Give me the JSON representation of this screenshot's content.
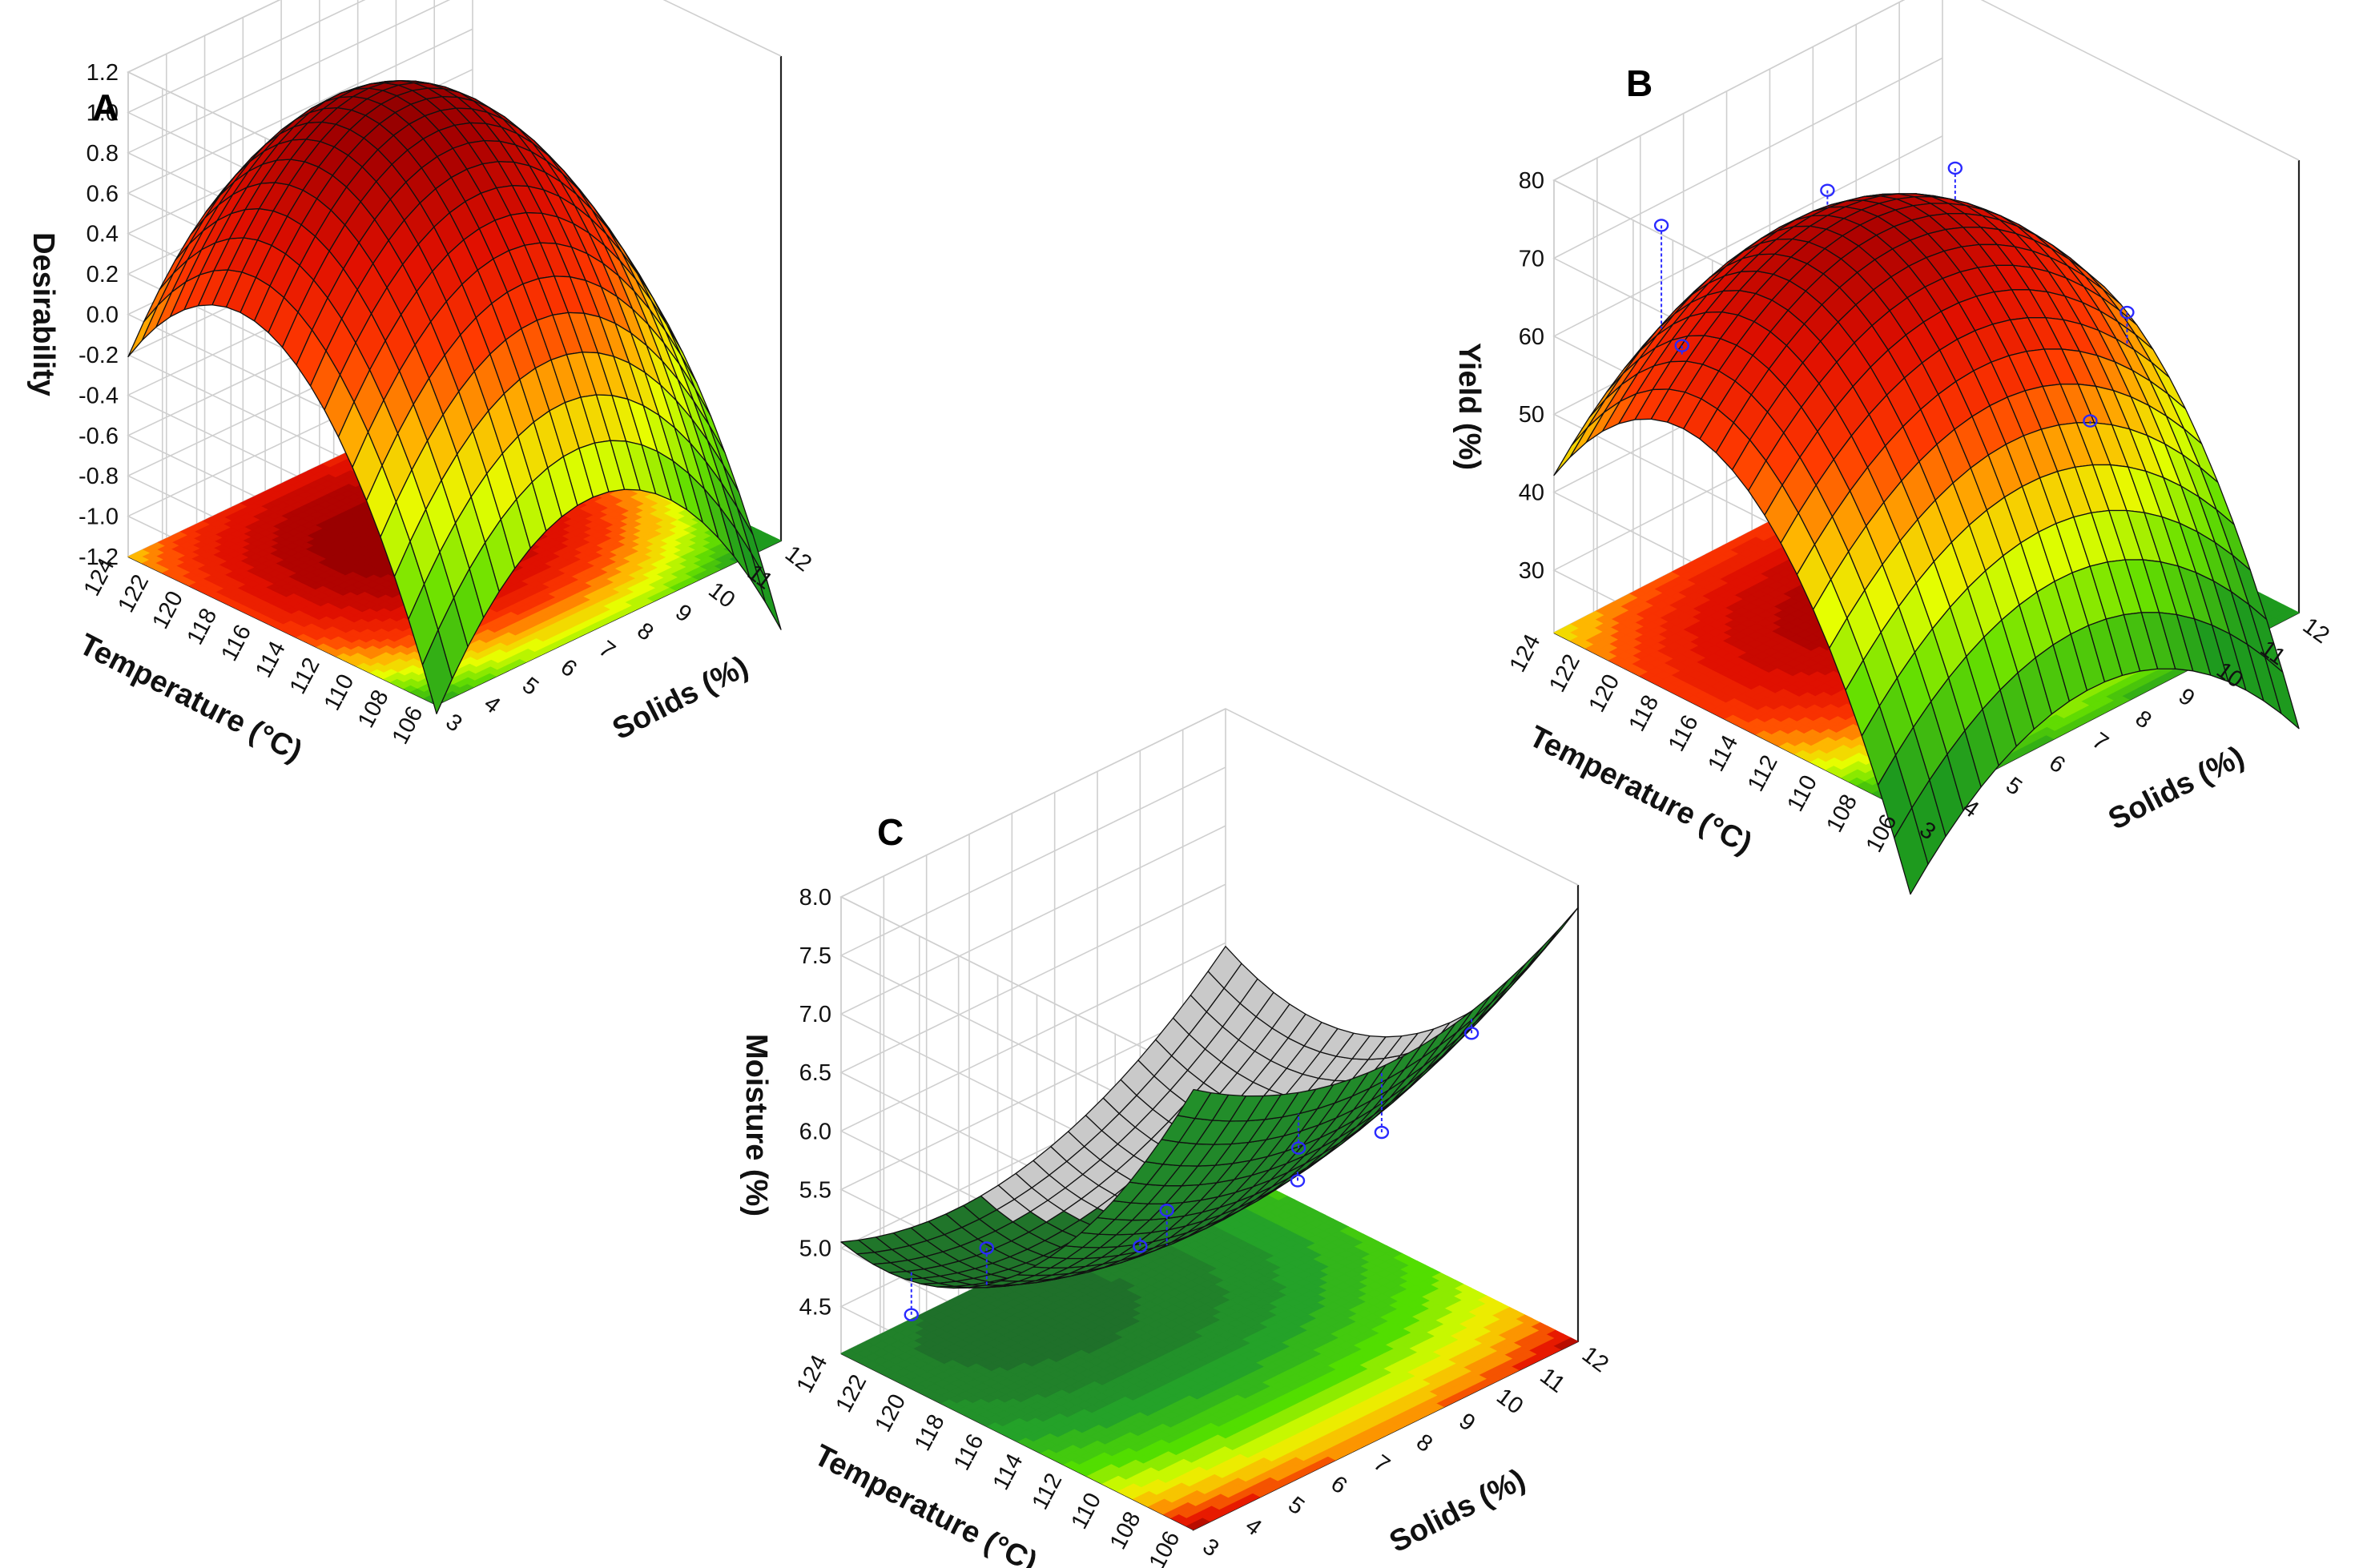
{
  "chart_data": [
    {
      "panel": "A",
      "type": "surface",
      "colormap": "green-yellow-red",
      "xlabel": "Solids (%)",
      "ylabel": "Temperature (°C)",
      "zlabel": "Desirability",
      "xlim": [
        3,
        12
      ],
      "ylim": [
        106,
        124
      ],
      "zlim": [
        -1.2,
        1.2
      ],
      "xticks": [
        "3",
        "4",
        "5",
        "6",
        "7",
        "8",
        "9",
        "10",
        "11",
        "12"
      ],
      "yticks": [
        "106",
        "108",
        "110",
        "112",
        "114",
        "116",
        "118",
        "120",
        "122",
        "124"
      ],
      "zticks": [
        "-1.2",
        "-1.0",
        "-0.8",
        "-0.6",
        "-0.4",
        "-0.2",
        "0.0",
        "0.2",
        "0.4",
        "0.6",
        "0.8",
        "1.0",
        "1.2"
      ],
      "surface": {
        "peak": 0.98,
        "x_opt": 7.0,
        "y_opt": 117.5,
        "ax": 0.044,
        "ay": 0.0115,
        "axy": 0.0
      },
      "points": []
    },
    {
      "panel": "B",
      "type": "surface",
      "colormap": "green-yellow-red",
      "xlabel": "Solids (%)",
      "ylabel": "Temperature (°C)",
      "zlabel": "Yield (%)",
      "xlim": [
        3,
        12
      ],
      "ylim": [
        106,
        124
      ],
      "zlim": [
        22,
        80
      ],
      "xticks": [
        "3",
        "4",
        "5",
        "6",
        "7",
        "8",
        "9",
        "10",
        "11",
        "12"
      ],
      "yticks": [
        "106",
        "108",
        "110",
        "112",
        "114",
        "116",
        "118",
        "120",
        "122",
        "124"
      ],
      "zticks": [
        "30",
        "40",
        "50",
        "60",
        "70",
        "80"
      ],
      "surface": {
        "peak": 71,
        "x_opt": 7.2,
        "y_opt": 117.5,
        "ax": 0.82,
        "ay": 0.34,
        "axy": 0.0
      },
      "points": [
        {
          "x": 3.9,
          "y": 119.5,
          "z": 62
        },
        {
          "x": 4.8,
          "y": 122.5,
          "z": 71
        },
        {
          "x": 7.5,
          "y": 120.0,
          "z": 71
        },
        {
          "x": 10.0,
          "y": 119.0,
          "z": 68
        },
        {
          "x": 11.0,
          "y": 112.5,
          "z": 55
        },
        {
          "x": 9.0,
          "y": 110.0,
          "z": 50
        }
      ]
    },
    {
      "panel": "C",
      "type": "surface",
      "colormap": "darkgreen-green-yellow-red",
      "xlabel": "Solids (%)",
      "ylabel": "Temperature (°C)",
      "zlabel": "Moisture (%)",
      "xlim": [
        3,
        12
      ],
      "ylim": [
        106,
        124
      ],
      "zlim": [
        4.1,
        8.0
      ],
      "xticks": [
        "3",
        "4",
        "5",
        "6",
        "7",
        "8",
        "9",
        "10",
        "11",
        "12"
      ],
      "yticks": [
        "106",
        "108",
        "110",
        "112",
        "114",
        "116",
        "118",
        "120",
        "122",
        "124"
      ],
      "zticks": [
        "4.5",
        "5.0",
        "5.5",
        "6.0",
        "6.5",
        "7.0",
        "7.5",
        "8.0"
      ],
      "surface": {
        "peak": 4.75,
        "x_opt": 6.0,
        "y_opt": 121.0,
        "ax": -0.028,
        "ay": -0.0115,
        "axy": -0.006
      },
      "points": [
        {
          "x": 3.2,
          "y": 117.0,
          "z": 5.55
        },
        {
          "x": 3.5,
          "y": 121.5,
          "z": 4.55
        },
        {
          "x": 4.5,
          "y": 112.0,
          "z": 5.75
        },
        {
          "x": 6.5,
          "y": 115.0,
          "z": 5.45
        },
        {
          "x": 7.5,
          "y": 110.5,
          "z": 5.9
        },
        {
          "x": 10.5,
          "y": 117.0,
          "z": 5.1
        },
        {
          "x": 11.3,
          "y": 114.5,
          "z": 5.3
        },
        {
          "x": 11.8,
          "y": 111.0,
          "z": 6.35
        }
      ]
    }
  ]
}
